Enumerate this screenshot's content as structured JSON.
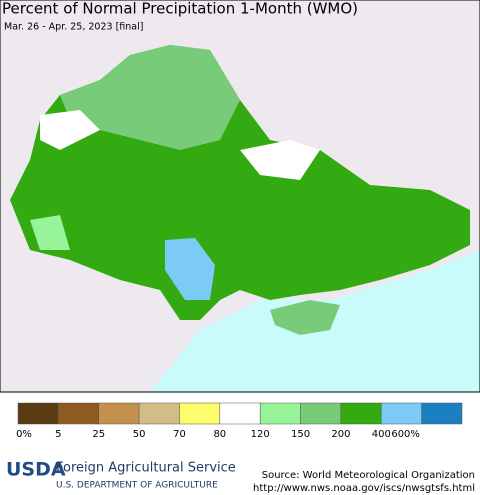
{
  "header": {
    "title": "Percent of Normal Precipitation 1-Month (WMO)",
    "subtitle": "Mar. 26 - Apr. 25, 2023 [final]"
  },
  "legend": {
    "labels": [
      "0%",
      "5",
      "25",
      "50",
      "70",
      "80",
      "120",
      "150",
      "200",
      "400",
      "600%"
    ],
    "colors": [
      "#5a3c12",
      "#8d5a1f",
      "#c4904b",
      "#d3bd86",
      "#fdfd6c",
      "#ffffff",
      "#98f498",
      "#78cb78",
      "#33aa12",
      "#7ccbf6",
      "#1b7fc2"
    ]
  },
  "footer": {
    "agency": "Foreign Agricultural Service",
    "department": "U.S. DEPARTMENT OF AGRICULTURE",
    "logo": "USDA",
    "source": "Source: World Meteorological Organization",
    "url": "http://www.nws.noaa.gov/iscs/nwsgtsfs.html"
  }
}
